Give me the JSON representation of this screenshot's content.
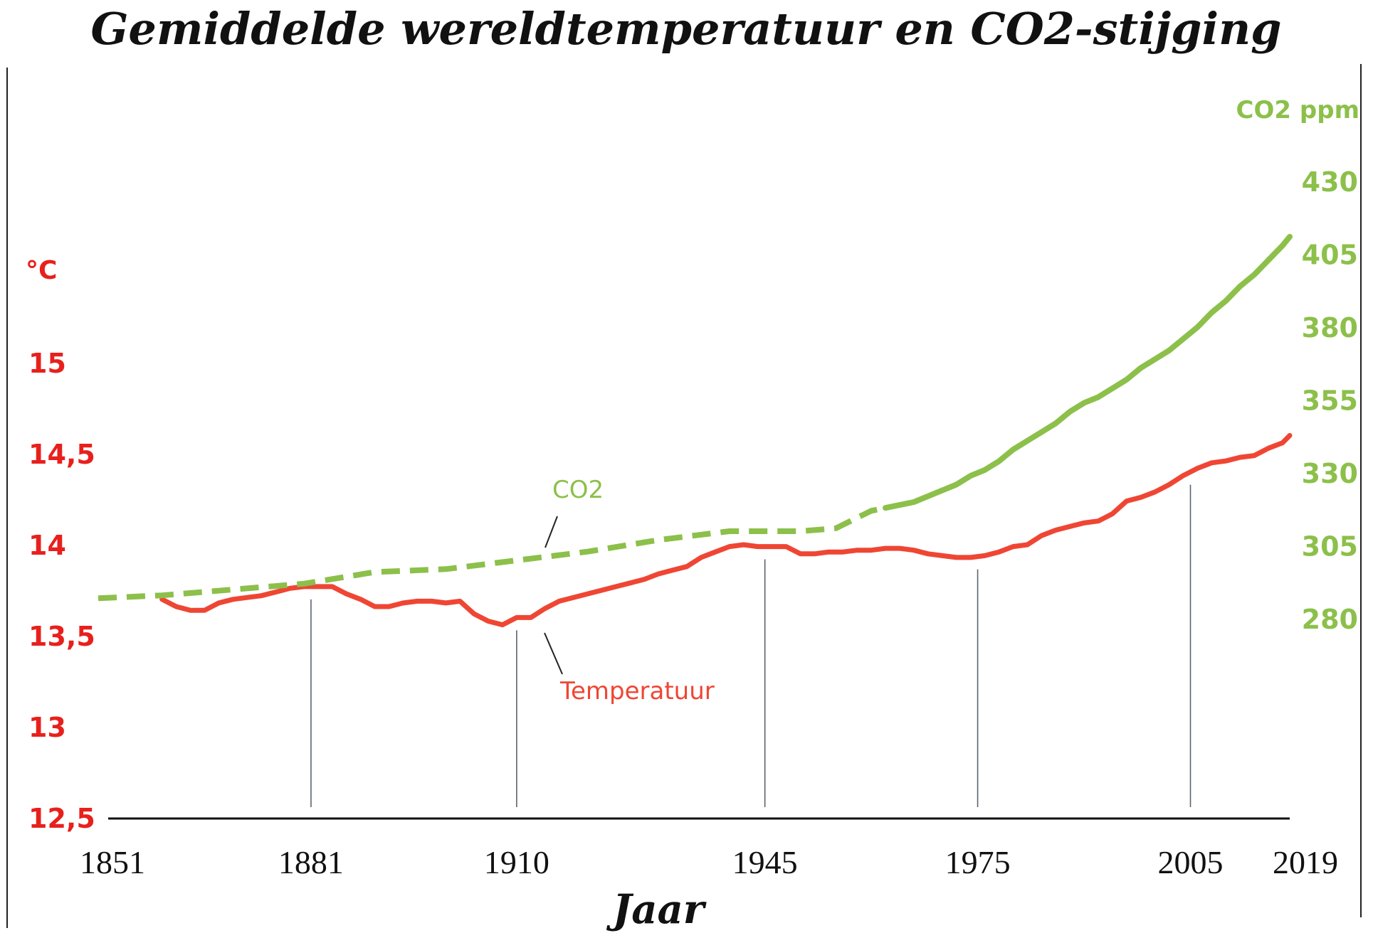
{
  "chart_data": {
    "type": "line",
    "title": "Gemiddelde wereldtemperatuur en CO2-stijging",
    "xlabel": "Jaar",
    "ylabel_left": "°C",
    "ylabel_right": "CO2 ppm",
    "x_ticks": [
      "1851",
      "1881",
      "1910",
      "1945",
      "1975",
      "2005",
      "2019"
    ],
    "y_left_ticks": [
      "15",
      "14,5",
      "14",
      "13,5",
      "13",
      "12,5"
    ],
    "y_right_ticks": [
      "430",
      "405",
      "380",
      "355",
      "330",
      "305",
      "280"
    ],
    "xlim": [
      1851,
      2019
    ],
    "ylim_left": [
      12.5,
      15.0
    ],
    "ylim_right": [
      280,
      430
    ],
    "grid": false,
    "colors": {
      "temperature": "#ef4634",
      "co2": "#8cc04a",
      "left_axis": "#e8201c",
      "right_axis": "#8cc04a",
      "marker_lines": "#5a6470"
    },
    "annotations": [
      {
        "text": "CO2",
        "series": "CO2"
      },
      {
        "text": "Temperatuur",
        "series": "Temperatuur"
      }
    ],
    "series": [
      {
        "name": "Temperatuur",
        "axis": "left",
        "x": [
          1860,
          1862,
          1864,
          1866,
          1868,
          1870,
          1872,
          1874,
          1876,
          1878,
          1880,
          1882,
          1884,
          1886,
          1888,
          1890,
          1892,
          1894,
          1896,
          1898,
          1900,
          1902,
          1904,
          1906,
          1908,
          1910,
          1912,
          1914,
          1916,
          1918,
          1920,
          1922,
          1924,
          1926,
          1928,
          1930,
          1932,
          1934,
          1936,
          1938,
          1940,
          1942,
          1944,
          1946,
          1948,
          1950,
          1952,
          1954,
          1956,
          1958,
          1960,
          1962,
          1964,
          1966,
          1968,
          1970,
          1972,
          1974,
          1976,
          1978,
          1980,
          1982,
          1984,
          1986,
          1988,
          1990,
          1992,
          1994,
          1996,
          1998,
          2000,
          2002,
          2004,
          2006,
          2008,
          2010,
          2012,
          2014,
          2016,
          2018,
          2019
        ],
        "values": [
          13.7,
          13.66,
          13.64,
          13.64,
          13.68,
          13.7,
          13.71,
          13.72,
          13.74,
          13.76,
          13.77,
          13.77,
          13.77,
          13.73,
          13.7,
          13.66,
          13.66,
          13.68,
          13.69,
          13.69,
          13.68,
          13.69,
          13.62,
          13.58,
          13.56,
          13.6,
          13.6,
          13.65,
          13.69,
          13.71,
          13.73,
          13.75,
          13.77,
          13.79,
          13.81,
          13.84,
          13.86,
          13.88,
          13.93,
          13.96,
          13.99,
          14.0,
          13.99,
          13.99,
          13.99,
          13.95,
          13.95,
          13.96,
          13.96,
          13.97,
          13.97,
          13.98,
          13.98,
          13.97,
          13.95,
          13.94,
          13.93,
          13.93,
          13.94,
          13.96,
          13.99,
          14.0,
          14.05,
          14.08,
          14.1,
          14.12,
          14.13,
          14.17,
          14.24,
          14.26,
          14.29,
          14.33,
          14.38,
          14.42,
          14.45,
          14.46,
          14.48,
          14.49,
          14.53,
          14.56,
          14.6
        ]
      },
      {
        "name": "CO2",
        "axis": "right",
        "x": [
          1851,
          1860,
          1870,
          1880,
          1890,
          1900,
          1910,
          1920,
          1930,
          1940,
          1945,
          1950,
          1955,
          1960,
          1962,
          1964,
          1966,
          1968,
          1970,
          1972,
          1974,
          1976,
          1978,
          1980,
          1982,
          1984,
          1986,
          1988,
          1990,
          1992,
          1994,
          1996,
          1998,
          2000,
          2002,
          2004,
          2006,
          2008,
          2010,
          2012,
          2014,
          2016,
          2018,
          2019
        ],
        "values": [
          287,
          288,
          290,
          292,
          296,
          297,
          300,
          303,
          307,
          310,
          310,
          310,
          311,
          317,
          318,
          319,
          320,
          322,
          324,
          326,
          329,
          331,
          334,
          338,
          341,
          344,
          347,
          351,
          354,
          356,
          359,
          362,
          366,
          369,
          372,
          376,
          380,
          385,
          389,
          394,
          398,
          403,
          408,
          411
        ]
      }
    ]
  }
}
